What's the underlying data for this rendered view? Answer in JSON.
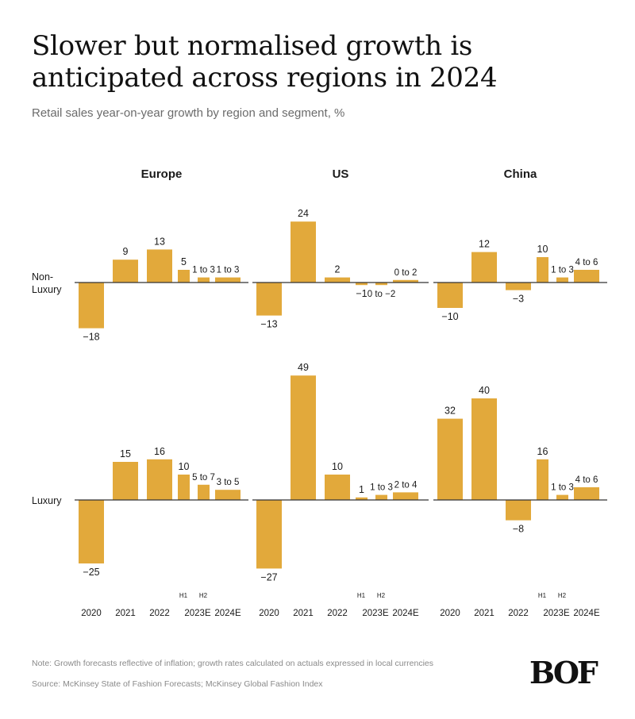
{
  "title": "Slower but normalised growth is anticipated across regions in 2024",
  "subtitle": "Retail sales year-on-year growth by region and segment, %",
  "note": "Note: Growth forecasts reflective of inflation; growth rates calculated on actuals expressed in local currencies",
  "source": "Source: McKinsey State of Fashion Forecasts; McKinsey Global Fashion Index",
  "logo": "BOF",
  "colors": {
    "bar": "#E2A93B",
    "axis": "#333333",
    "text": "#1a1a1a",
    "muted": "#777777"
  },
  "chart_data": {
    "type": "bar",
    "title": "Retail sales year-on-year growth by region and segment, %",
    "regions": [
      "Europe",
      "US",
      "China"
    ],
    "segments": [
      "Non-Luxury",
      "Luxury"
    ],
    "categories": [
      "2020",
      "2021",
      "2022",
      "2023E H1",
      "2023E H2",
      "2024E"
    ],
    "x_tick_labels": [
      "2020",
      "2021",
      "2022",
      "2023E",
      "2024E"
    ],
    "half_labels": [
      "H1",
      "H2"
    ],
    "ylabel": "%",
    "grid": false,
    "panels": [
      {
        "region": "Europe",
        "segment": "Non-Luxury",
        "values": [
          -18,
          9,
          13,
          5,
          2,
          2
        ],
        "labels": [
          "−18",
          "9",
          "13",
          "5",
          "1 to 3",
          "1 to 3"
        ]
      },
      {
        "region": "US",
        "segment": "Non-Luxury",
        "values": [
          -13,
          24,
          2,
          -1,
          -1,
          1
        ],
        "labels": [
          "−13",
          "24",
          "2",
          "−1",
          "0 to −2",
          "0 to 2"
        ]
      },
      {
        "region": "China",
        "segment": "Non-Luxury",
        "values": [
          -10,
          12,
          -3,
          10,
          2,
          5
        ],
        "labels": [
          "−10",
          "12",
          "−3",
          "10",
          "1 to 3",
          "4 to 6"
        ]
      },
      {
        "region": "Europe",
        "segment": "Luxury",
        "values": [
          -25,
          15,
          16,
          10,
          6,
          4
        ],
        "labels": [
          "−25",
          "15",
          "16",
          "10",
          "5 to 7",
          "3 to 5"
        ]
      },
      {
        "region": "US",
        "segment": "Luxury",
        "values": [
          -27,
          49,
          10,
          1,
          2,
          3
        ],
        "labels": [
          "−27",
          "49",
          "10",
          "1",
          "1 to 3",
          "2 to 4"
        ]
      },
      {
        "region": "China",
        "segment": "Luxury",
        "values": [
          32,
          40,
          -8,
          16,
          2,
          5
        ],
        "labels": [
          "32",
          "40",
          "−8",
          "16",
          "1 to 3",
          "4 to 6"
        ]
      }
    ]
  }
}
